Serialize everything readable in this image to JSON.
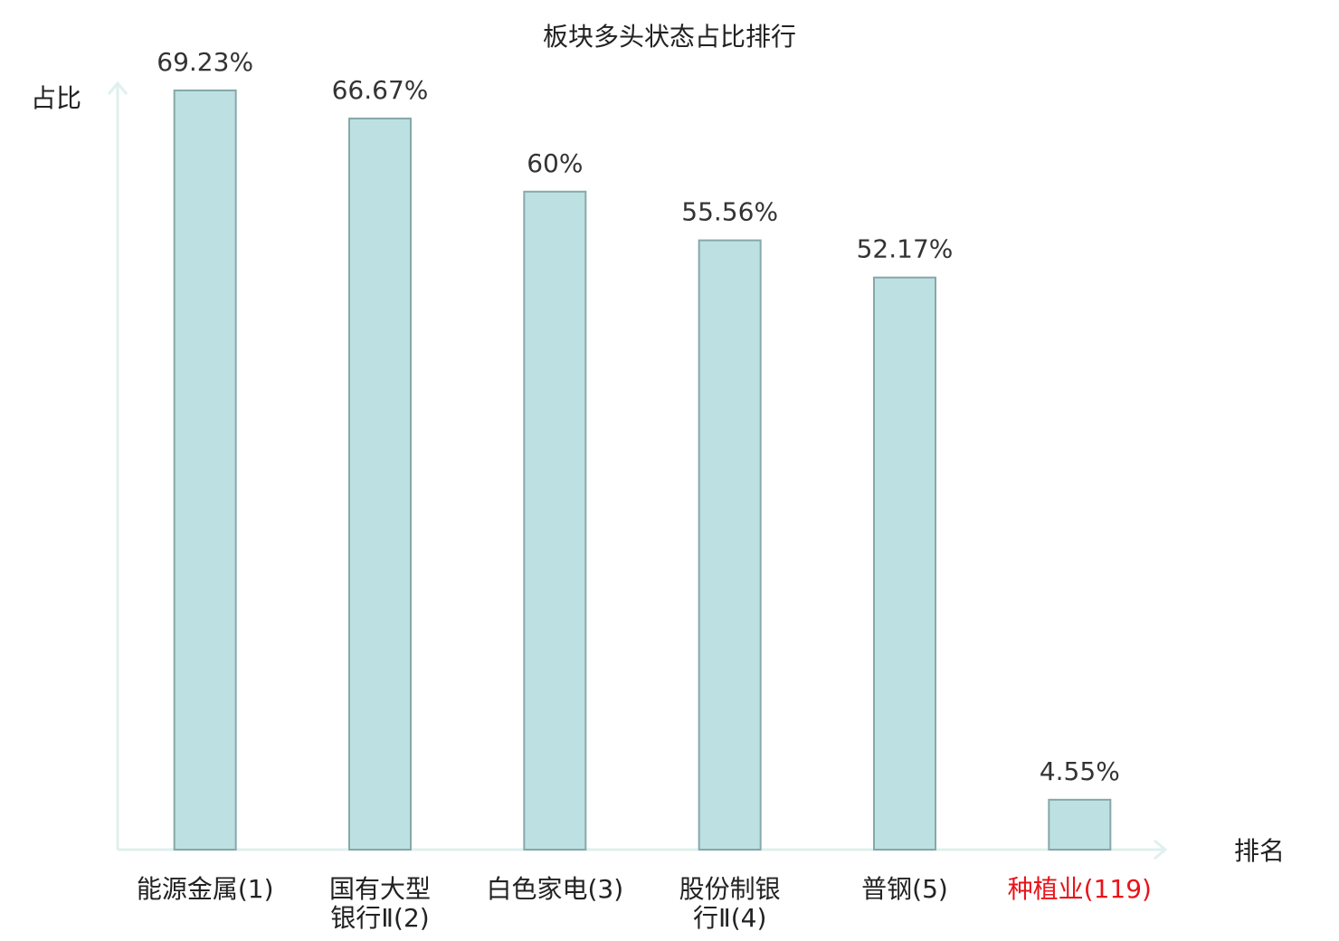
{
  "chart_data": {
    "type": "bar",
    "title": "板块多头状态占比排行",
    "y_label": "占比",
    "x_label": "排名",
    "categories": [
      "能源金属(1)",
      "国有大型银行Ⅱ(2)",
      "白色家电(3)",
      "股份制银行Ⅱ(4)",
      "普钢(5)",
      "种植业(119)"
    ],
    "values": [
      69.23,
      66.67,
      60,
      55.56,
      52.17,
      4.55
    ],
    "value_labels": [
      "69.23%",
      "66.67%",
      "60%",
      "55.56%",
      "52.17%",
      "4.55%"
    ],
    "color": "#bde0e3",
    "edge_color": "#86a8a8",
    "label_colors": [
      "#222222",
      "#222222",
      "#222222",
      "#222222",
      "#222222",
      "#e8141a"
    ],
    "ylim": [
      0,
      70
    ]
  }
}
